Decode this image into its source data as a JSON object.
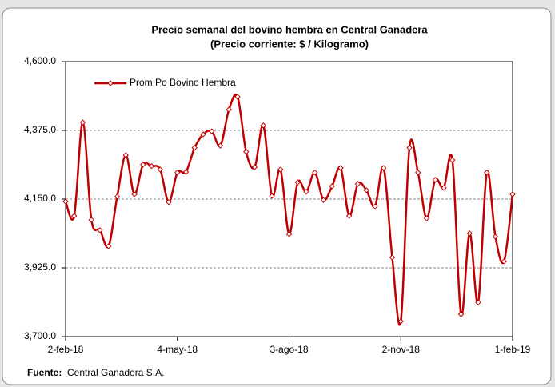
{
  "chart_data": {
    "type": "line",
    "title": "Precio semanal del bovino  hembra en Central Ganadera",
    "subtitle": "(Precio corriente: $ / Kilogramo)",
    "categories": [
      "2-feb-18",
      null,
      null,
      null,
      null,
      null,
      null,
      null,
      null,
      null,
      null,
      null,
      null,
      "4-may-18",
      null,
      null,
      null,
      null,
      null,
      null,
      null,
      null,
      null,
      null,
      null,
      null,
      "3-ago-18",
      null,
      null,
      null,
      null,
      null,
      null,
      null,
      null,
      null,
      null,
      null,
      null,
      "2-nov-18",
      null,
      null,
      null,
      null,
      null,
      null,
      null,
      null,
      null,
      null,
      null,
      null,
      "1-feb-19"
    ],
    "series": [
      {
        "name": "Prom Po Bovino Hembra",
        "color": "#c00000",
        "values": [
          4142,
          4095,
          4401,
          4082,
          4048,
          3996,
          4158,
          4294,
          4166,
          4263,
          4258,
          4247,
          4140,
          4237,
          4239,
          4318,
          4362,
          4372,
          4325,
          4443,
          4485,
          4305,
          4255,
          4391,
          4160,
          4247,
          4035,
          4205,
          4174,
          4237,
          4147,
          4192,
          4252,
          4095,
          4200,
          4179,
          4126,
          4252,
          3959,
          3750,
          4318,
          4237,
          4087,
          4213,
          4187,
          4278,
          3773,
          4038,
          3812,
          4237,
          4027,
          3946,
          4166
        ]
      }
    ],
    "ylim": [
      3700,
      4600
    ],
    "yticks": [
      {
        "value": 3700,
        "label": "3,700.0"
      },
      {
        "value": 3925,
        "label": "3,925.0"
      },
      {
        "value": 4150,
        "label": "4,150.0"
      },
      {
        "value": 4375,
        "label": "4,375.0"
      },
      {
        "value": 4600,
        "label": "4,600.0"
      }
    ],
    "grid": true,
    "legend": "upper left",
    "source_label": "Fuente:",
    "source": "Central Ganadera S.A."
  }
}
